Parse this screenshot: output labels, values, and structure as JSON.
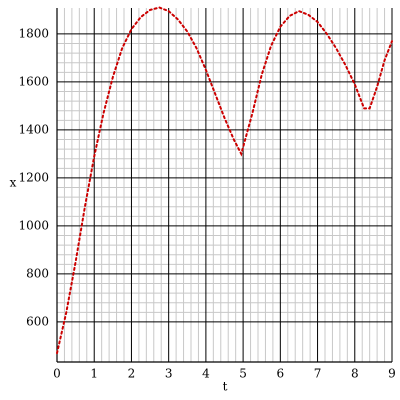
{
  "chart_data": {
    "type": "line",
    "xlabel": "t",
    "ylabel": "x",
    "x": [
      0,
      0.25,
      0.5,
      0.75,
      1,
      1.25,
      1.5,
      1.75,
      2,
      2.25,
      2.5,
      2.75,
      3,
      3.25,
      3.5,
      3.75,
      4,
      4.25,
      4.5,
      4.75,
      4.95,
      5.25,
      5.5,
      5.75,
      6,
      6.25,
      6.5,
      6.75,
      7,
      7.25,
      7.5,
      7.75,
      8,
      8.25,
      8.4,
      8.6,
      8.8,
      9
    ],
    "series": [
      {
        "color": "#cc0000",
        "values": [
          470,
          640,
          850,
          1080,
          1290,
          1470,
          1620,
          1740,
          1820,
          1870,
          1900,
          1910,
          1895,
          1860,
          1810,
          1740,
          1650,
          1550,
          1450,
          1360,
          1300,
          1470,
          1630,
          1750,
          1830,
          1875,
          1895,
          1880,
          1850,
          1800,
          1740,
          1670,
          1590,
          1490,
          1490,
          1580,
          1690,
          1770
        ]
      }
    ],
    "xlim": [
      0,
      9
    ],
    "xticks": [
      0,
      1,
      2,
      3,
      4,
      5,
      6,
      7,
      8,
      9
    ],
    "ylim": [
      433,
      1908
    ],
    "yticks": [
      600,
      800,
      1000,
      1200,
      1400,
      1600,
      1800
    ],
    "grid": true,
    "minor_grid": true
  }
}
